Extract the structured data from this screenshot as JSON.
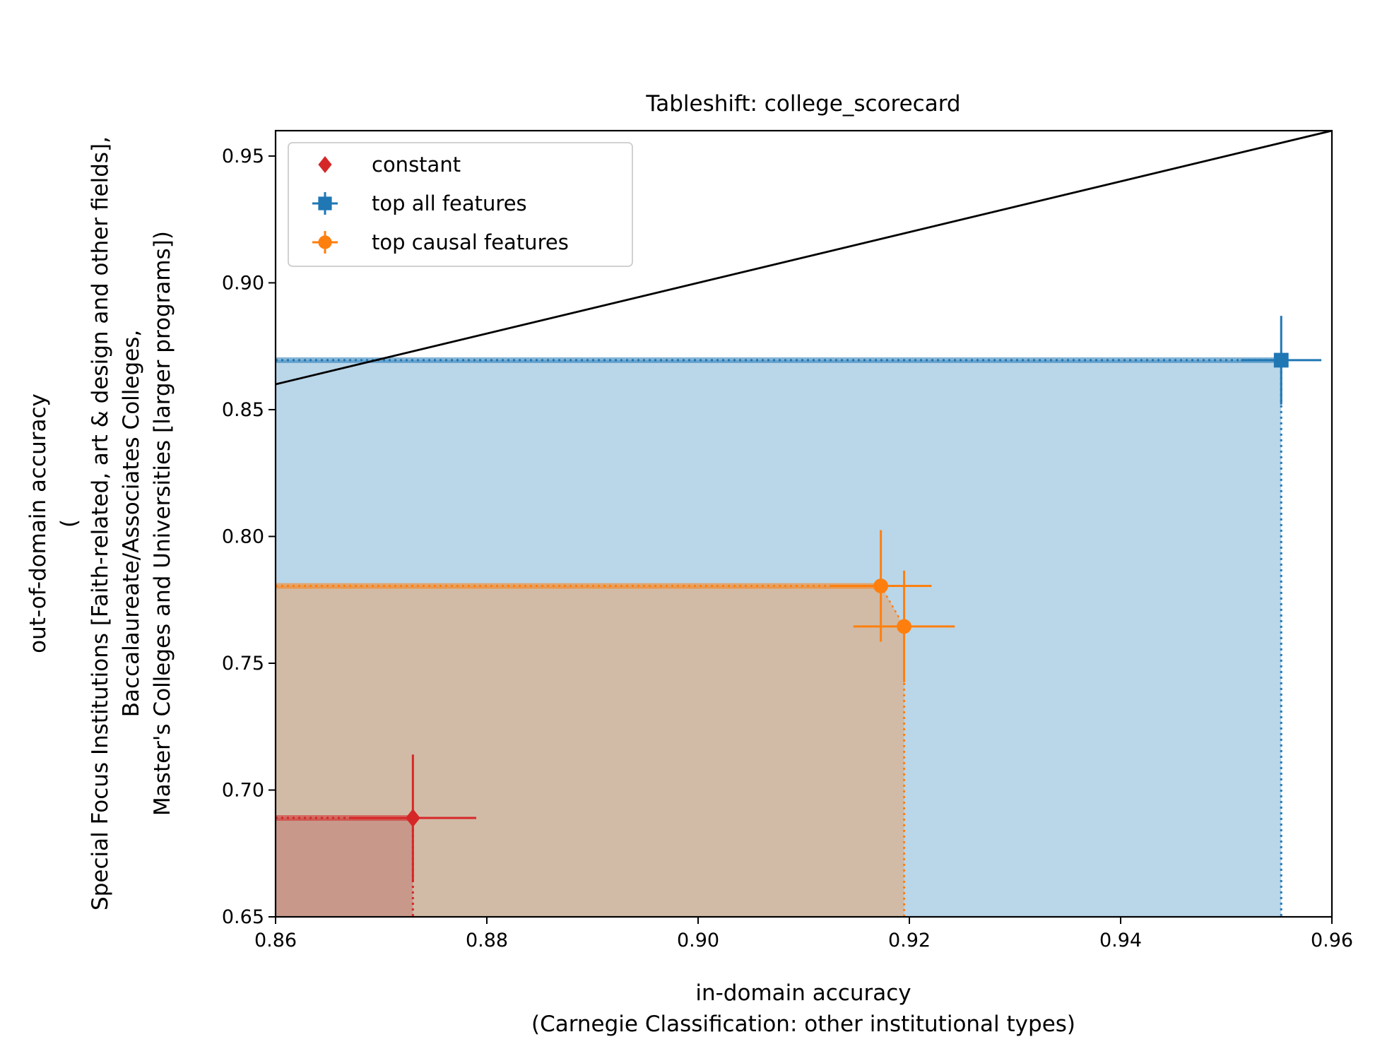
{
  "chart_data": {
    "type": "scatter",
    "title": "Tableshift: college_scorecard",
    "xlabel_lines": [
      "in-domain accuracy",
      "(Carnegie Classification: other institutional types)"
    ],
    "ylabel_lines": [
      "out-of-domain accuracy",
      "(",
      "Special Focus Institutions [Faith-related, art & design and other fields],",
      "Baccalaureate/Associates Colleges,",
      "Master's Colleges and Universities [larger programs])"
    ],
    "xlim": [
      0.86,
      0.96
    ],
    "ylim": [
      0.65,
      0.96
    ],
    "xticks": [
      "0.86",
      "0.88",
      "0.90",
      "0.92",
      "0.94",
      "0.96"
    ],
    "yticks": [
      "0.65",
      "0.70",
      "0.75",
      "0.80",
      "0.85",
      "0.90",
      "0.95"
    ],
    "grid": false,
    "legend_position": "top-left",
    "diagonal": {
      "from": [
        0.86,
        0.86
      ],
      "to": [
        0.96,
        0.96
      ],
      "color": "#000000"
    },
    "series": [
      {
        "name": "constant",
        "marker": "diamond",
        "color": "#d62728",
        "fill": "#c8998a",
        "points": [
          {
            "x": 0.873,
            "y": 0.689,
            "xerr": 0.006,
            "yerr": 0.025
          }
        ],
        "frontier": [
          [
            0.873,
            0.689
          ]
        ]
      },
      {
        "name": "top all features",
        "marker": "square",
        "color": "#1f77b4",
        "fill": "#bad6e9",
        "points": [
          {
            "x": 0.9552,
            "y": 0.8695,
            "xerr": 0.0038,
            "yerr": 0.0175
          }
        ],
        "frontier": [
          [
            0.9552,
            0.8695
          ]
        ]
      },
      {
        "name": "top causal features",
        "marker": "circle",
        "color": "#ff7f0e",
        "fill": "#d1bba6",
        "points": [
          {
            "x": 0.9173,
            "y": 0.7805,
            "xerr": 0.0048,
            "yerr": 0.022
          },
          {
            "x": 0.9195,
            "y": 0.7645,
            "xerr": 0.0048,
            "yerr": 0.022
          }
        ],
        "frontier": [
          [
            0.9173,
            0.7805
          ],
          [
            0.9195,
            0.7645
          ]
        ]
      }
    ]
  }
}
